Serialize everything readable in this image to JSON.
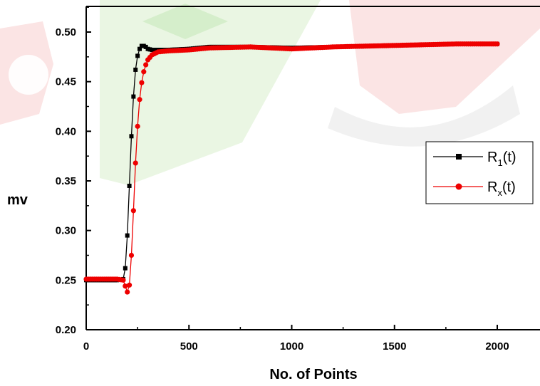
{
  "chart_data": {
    "type": "scatter",
    "title": "",
    "xlabel": "No. of Points",
    "ylabel": "mv",
    "xlim": [
      0,
      2200
    ],
    "ylim": [
      0.2,
      0.52
    ],
    "xticks": [
      {
        "value": 0,
        "label": "0"
      },
      {
        "value": 500,
        "label": "500"
      },
      {
        "value": 1000,
        "label": "1000"
      },
      {
        "value": 1500,
        "label": "1500"
      },
      {
        "value": 2000,
        "label": "2000"
      }
    ],
    "yticks": [
      {
        "value": 0.2,
        "label": "0.20"
      },
      {
        "value": 0.25,
        "label": "0.25"
      },
      {
        "value": 0.3,
        "label": "0.30"
      },
      {
        "value": 0.35,
        "label": "0.35"
      },
      {
        "value": 0.4,
        "label": "0.40"
      },
      {
        "value": 0.45,
        "label": "0.45"
      },
      {
        "value": 0.5,
        "label": "0.50"
      }
    ],
    "grid": false,
    "legend_position": "right",
    "series": [
      {
        "name": "R1(t)",
        "name_main": "R",
        "name_sub": "1",
        "name_suffix": "(t)",
        "color": "#000000",
        "marker": "square",
        "x": [
          0,
          50,
          100,
          150,
          180,
          190,
          200,
          210,
          220,
          230,
          240,
          250,
          260,
          270,
          280,
          290,
          300,
          320,
          350,
          400,
          500,
          600,
          800,
          1000,
          1200,
          1400,
          1600,
          1800,
          2000
        ],
        "y": [
          0.25,
          0.25,
          0.25,
          0.25,
          0.251,
          0.262,
          0.295,
          0.345,
          0.395,
          0.435,
          0.462,
          0.476,
          0.483,
          0.486,
          0.486,
          0.485,
          0.483,
          0.482,
          0.482,
          0.482,
          0.483,
          0.485,
          0.485,
          0.484,
          0.485,
          0.486,
          0.487,
          0.488,
          0.488
        ]
      },
      {
        "name": "Rx(t)",
        "name_main": "R",
        "name_sub": "x",
        "name_suffix": "(t)",
        "color": "#ee0000",
        "marker": "circle",
        "x": [
          0,
          50,
          100,
          150,
          180,
          190,
          200,
          210,
          220,
          230,
          240,
          250,
          260,
          270,
          280,
          290,
          300,
          320,
          350,
          400,
          500,
          600,
          800,
          1000,
          1200,
          1400,
          1600,
          1800,
          2000
        ],
        "y": [
          0.251,
          0.251,
          0.251,
          0.251,
          0.25,
          0.244,
          0.238,
          0.245,
          0.275,
          0.32,
          0.368,
          0.405,
          0.432,
          0.449,
          0.46,
          0.467,
          0.472,
          0.477,
          0.48,
          0.481,
          0.482,
          0.484,
          0.485,
          0.483,
          0.485,
          0.486,
          0.487,
          0.488,
          0.488
        ]
      }
    ]
  }
}
